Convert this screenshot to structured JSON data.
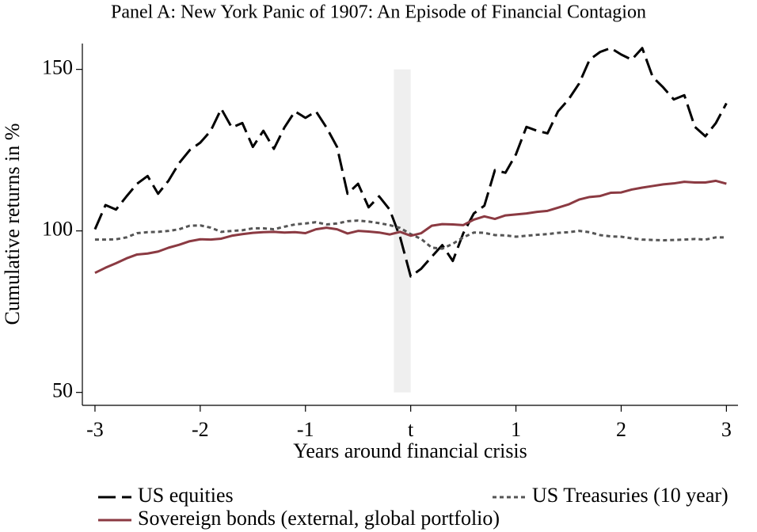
{
  "chart_data": {
    "type": "line",
    "title": "Panel A: New York Panic of 1907: An Episode of Financial Contagion",
    "xlabel": "Years around financial crisis",
    "ylabel": "Cumulative returns in %",
    "xlim": [
      -3.12,
      3.11
    ],
    "ylim": [
      46,
      158
    ],
    "xticks": [
      -3,
      -2,
      -1,
      {
        "value": 0,
        "label": "t"
      },
      1,
      2,
      3
    ],
    "yticks": [
      50,
      100,
      150
    ],
    "grid": false,
    "shaded_band": {
      "x": [
        -0.16,
        0
      ],
      "y": [
        50,
        150
      ],
      "color": "#efefef"
    },
    "x": [
      -3.0,
      -2.9,
      -2.8,
      -2.7,
      -2.6,
      -2.5,
      -2.4,
      -2.3,
      -2.2,
      -2.1,
      -2.0,
      -1.9,
      -1.8,
      -1.7,
      -1.6,
      -1.5,
      -1.4,
      -1.3,
      -1.2,
      -1.1,
      -1.0,
      -0.9,
      -0.8,
      -0.7,
      -0.6,
      -0.5,
      -0.4,
      -0.3,
      -0.2,
      -0.1,
      0.0,
      0.1,
      0.2,
      0.3,
      0.4,
      0.5,
      0.6,
      0.7,
      0.8,
      0.9,
      1.0,
      1.1,
      1.2,
      1.3,
      1.4,
      1.5,
      1.6,
      1.7,
      1.8,
      1.9,
      2.0,
      2.1,
      2.2,
      2.3,
      2.4,
      2.5,
      2.6,
      2.7,
      2.8,
      2.9,
      3.0
    ],
    "series": [
      {
        "name": "US equities",
        "color": "#000000",
        "style": "dashed",
        "values": [
          100.5,
          108,
          106.6,
          110.7,
          114.6,
          117,
          111.5,
          115.6,
          121,
          125,
          127.3,
          131,
          137.8,
          132,
          133.4,
          126,
          131,
          125.4,
          132,
          137,
          135,
          137,
          132,
          126,
          111.5,
          114.6,
          107.3,
          110.7,
          106.6,
          98,
          85.9,
          88.3,
          92,
          95.6,
          90.7,
          99.3,
          105.4,
          107.8,
          118.8,
          118,
          123.7,
          132.2,
          131,
          130.2,
          137,
          140.7,
          145.6,
          153,
          155.4,
          156.6,
          154.6,
          153,
          156.6,
          147.6,
          144.4,
          140.7,
          142,
          132.2,
          129.3,
          133.4,
          139.5
        ]
      },
      {
        "name": "US Treasuries (10 year)",
        "color": "#555555",
        "style": "dotted",
        "values": [
          97.3,
          97.3,
          97.4,
          98,
          99.3,
          99.6,
          99.7,
          100,
          100.5,
          101.6,
          101.7,
          101,
          99.7,
          100,
          100.2,
          100.8,
          100.8,
          100.5,
          101.3,
          102,
          102.3,
          102.7,
          102,
          102.3,
          103,
          103.2,
          102.9,
          102.4,
          101.8,
          100.9,
          99,
          97.5,
          94.8,
          94.5,
          96,
          98,
          99.5,
          99.4,
          98.7,
          98.6,
          98.2,
          98.5,
          98.8,
          99,
          99.4,
          99.6,
          100,
          99.6,
          98.7,
          98.3,
          98.2,
          97.7,
          97.3,
          97.2,
          97.1,
          97.2,
          97.3,
          97.5,
          97.3,
          98,
          98
        ]
      },
      {
        "name": "Sovereign bonds (external, global portfolio)",
        "color": "#8b3a42",
        "style": "solid",
        "values": [
          87,
          88.6,
          90,
          91.5,
          92.7,
          93,
          93.6,
          94.8,
          95.7,
          96.8,
          97.4,
          97.3,
          97.6,
          98.5,
          99,
          99.4,
          99.6,
          99.7,
          99.5,
          99.6,
          99.3,
          100.5,
          101,
          100.5,
          99.2,
          100,
          99.8,
          99.5,
          98.9,
          99.7,
          98.5,
          99.3,
          101.6,
          102.1,
          102,
          101.8,
          103.5,
          104.5,
          103.7,
          104.8,
          105.1,
          105.4,
          105.9,
          106.2,
          107.2,
          108.2,
          109.7,
          110.5,
          110.8,
          111.8,
          111.9,
          112.8,
          113.4,
          113.9,
          114.4,
          114.7,
          115.2,
          115,
          115,
          115.5,
          114.6
        ]
      }
    ]
  }
}
